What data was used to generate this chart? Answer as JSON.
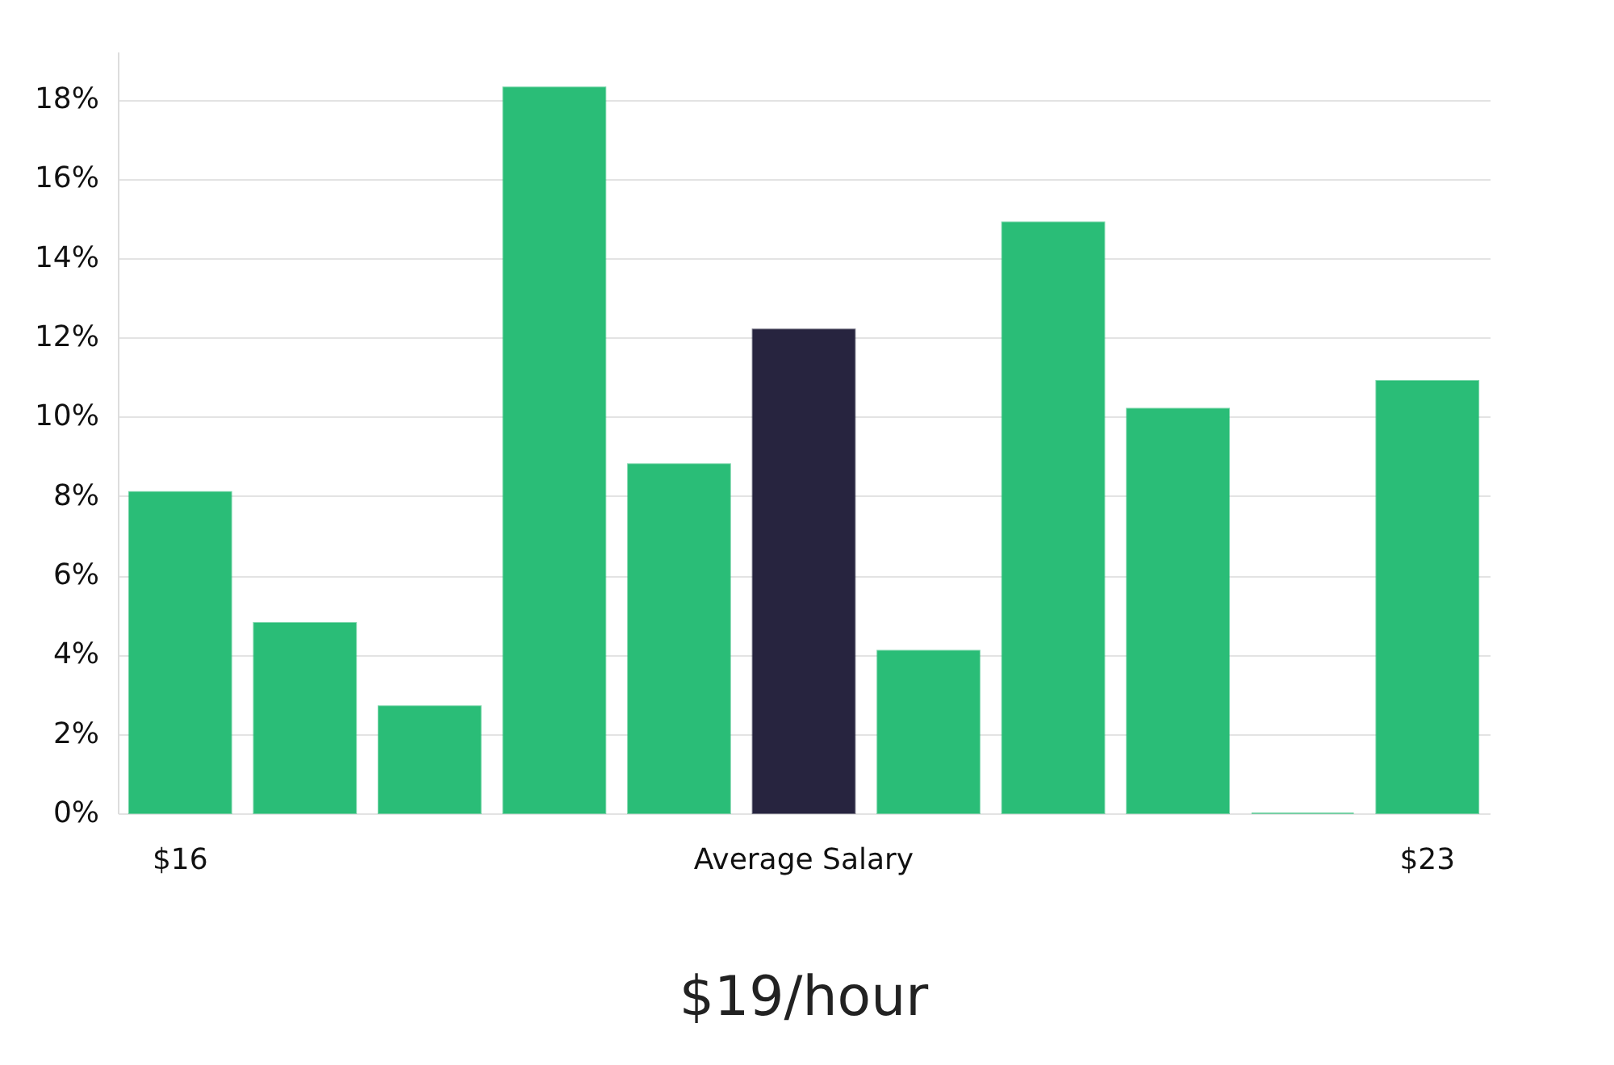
{
  "chart_data": {
    "type": "bar",
    "title": "$19/hour",
    "categories": [
      "$16",
      null,
      null,
      null,
      null,
      "Average Salary",
      null,
      null,
      null,
      null,
      "$23"
    ],
    "values": [
      8.1,
      4.8,
      2.7,
      18.3,
      8.8,
      12.2,
      4.1,
      14.9,
      10.2,
      0,
      10.9
    ],
    "colors": [
      "#2abd77",
      "#2abd77",
      "#2abd77",
      "#2abd77",
      "#2abd77",
      "#27243f",
      "#2abd77",
      "#2abd77",
      "#2abd77",
      "#2abd77",
      "#2abd77"
    ],
    "ylim": [
      0,
      19.2
    ],
    "yticks": [
      {
        "value": 0,
        "label": "0%"
      },
      {
        "value": 2,
        "label": "2%"
      },
      {
        "value": 4,
        "label": "4%"
      },
      {
        "value": 6,
        "label": "6%"
      },
      {
        "value": 8,
        "label": "8%"
      },
      {
        "value": 10,
        "label": "10%"
      },
      {
        "value": 12,
        "label": "12%"
      },
      {
        "value": 14,
        "label": "14%"
      },
      {
        "value": 16,
        "label": "16%"
      },
      {
        "value": 18,
        "label": "18%"
      }
    ],
    "grid": "y"
  }
}
